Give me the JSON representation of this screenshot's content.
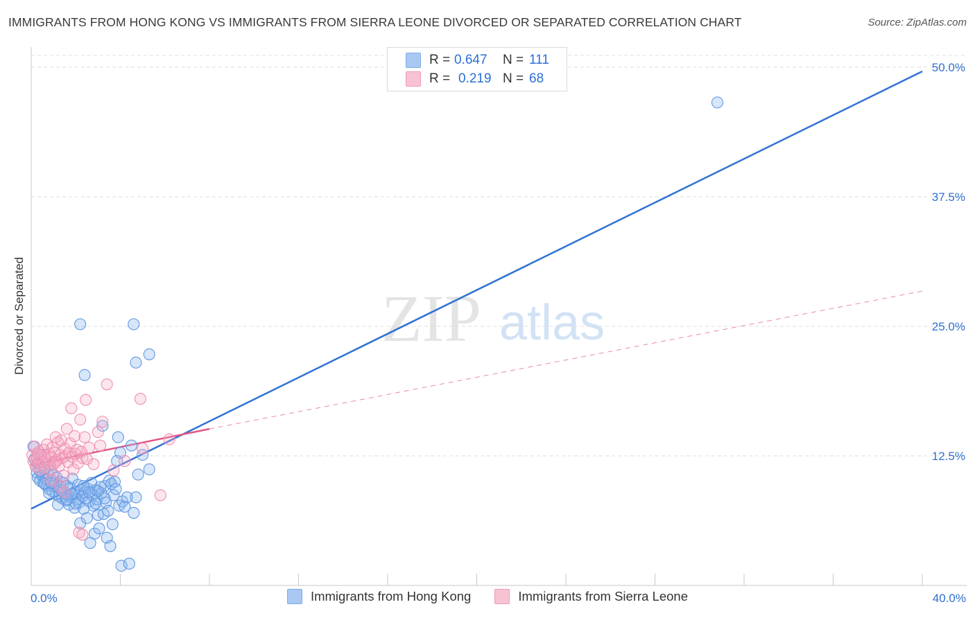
{
  "title": "IMMIGRANTS FROM HONG KONG VS IMMIGRANTS FROM SIERRA LEONE DIVORCED OR SEPARATED CORRELATION CHART",
  "source": "Source: ZipAtlas.com",
  "watermark": {
    "zip": "ZIP",
    "atlas": "atlas"
  },
  "legend": {
    "rows": [
      {
        "r_label": "R =",
        "r_value": "0.647",
        "n_label": "N =",
        "n_value": "111",
        "color": "#a9c8f2"
      },
      {
        "r_label": "R =",
        "r_value": "0.219",
        "n_label": "N =",
        "n_value": "68",
        "color": "#f7b6c9"
      }
    ]
  },
  "bottom_legend": [
    {
      "label": "Immigrants from Hong Kong",
      "color": "#a9c8f2"
    },
    {
      "label": "Immigrants from Sierra Leone",
      "color": "#f7b6c9"
    }
  ],
  "chart_data": {
    "type": "scatter",
    "title": "IMMIGRANTS FROM HONG KONG VS IMMIGRANTS FROM SIERRA LEONE DIVORCED OR SEPARATED CORRELATION CHART",
    "xlabel": "",
    "ylabel": "Divorced or Separated",
    "xlim": [
      0,
      40
    ],
    "ylim": [
      0,
      50
    ],
    "x_tick_labels": [
      "0.0%",
      "40.0%"
    ],
    "y_ticks": [
      12.5,
      25.0,
      37.5,
      50.0
    ],
    "y_tick_labels": [
      "12.5%",
      "25.0%",
      "37.5%",
      "50.0%"
    ],
    "grid": true,
    "legend_position": "top-center",
    "series": [
      {
        "name": "Immigrants from Hong Kong",
        "color": "#6ea0e8",
        "trendline": {
          "x": [
            0,
            40
          ],
          "y": [
            7.4,
            49.6
          ],
          "color": "#2e72d2",
          "style": "solid"
        },
        "points": [
          [
            0.1,
            13.4
          ],
          [
            0.15,
            12.2
          ],
          [
            0.2,
            11.5
          ],
          [
            0.25,
            10.9
          ],
          [
            0.3,
            10.4
          ],
          [
            0.35,
            11.8
          ],
          [
            0.4,
            10.1
          ],
          [
            0.45,
            12.6
          ],
          [
            0.5,
            10.6
          ],
          [
            0.55,
            9.9
          ],
          [
            0.6,
            11.2
          ],
          [
            0.65,
            10.3
          ],
          [
            0.7,
            9.6
          ],
          [
            0.75,
            10.8
          ],
          [
            0.8,
            9.3
          ],
          [
            0.85,
            11.6
          ],
          [
            0.9,
            10.2
          ],
          [
            0.95,
            9.1
          ],
          [
            1.0,
            10.7
          ],
          [
            1.05,
            9.8
          ],
          [
            1.1,
            8.8
          ],
          [
            1.15,
            10.4
          ],
          [
            1.2,
            9.5
          ],
          [
            1.25,
            8.6
          ],
          [
            1.3,
            10.0
          ],
          [
            1.35,
            9.2
          ],
          [
            1.4,
            8.4
          ],
          [
            1.45,
            9.9
          ],
          [
            1.5,
            8.9
          ],
          [
            1.55,
            8.2
          ],
          [
            1.6,
            9.6
          ],
          [
            1.65,
            8.7
          ],
          [
            1.7,
            7.8
          ],
          [
            1.75,
            9.4
          ],
          [
            1.8,
            8.5
          ],
          [
            1.85,
            10.3
          ],
          [
            1.9,
            8.8
          ],
          [
            1.95,
            7.5
          ],
          [
            2.0,
            9.1
          ],
          [
            2.05,
            8.3
          ],
          [
            2.1,
            9.7
          ],
          [
            2.15,
            8.0
          ],
          [
            2.2,
            6.0
          ],
          [
            2.25,
            9.2
          ],
          [
            2.3,
            8.6
          ],
          [
            2.35,
            7.4
          ],
          [
            2.4,
            9.0
          ],
          [
            2.45,
            8.4
          ],
          [
            2.5,
            6.5
          ],
          [
            2.55,
            9.3
          ],
          [
            2.6,
            8.1
          ],
          [
            2.65,
            4.1
          ],
          [
            2.7,
            9.9
          ],
          [
            2.75,
            8.7
          ],
          [
            2.8,
            7.7
          ],
          [
            2.85,
            5.0
          ],
          [
            2.9,
            9.2
          ],
          [
            2.95,
            8.3
          ],
          [
            3.0,
            6.8
          ],
          [
            3.05,
            5.5
          ],
          [
            3.1,
            9.5
          ],
          [
            3.15,
            8.9
          ],
          [
            3.2,
            15.4
          ],
          [
            3.25,
            6.9
          ],
          [
            3.3,
            9.6
          ],
          [
            3.35,
            8.0
          ],
          [
            3.4,
            4.6
          ],
          [
            3.45,
            7.2
          ],
          [
            3.5,
            10.1
          ],
          [
            3.55,
            3.8
          ],
          [
            3.6,
            9.8
          ],
          [
            3.65,
            5.9
          ],
          [
            3.7,
            8.7
          ],
          [
            3.75,
            10.0
          ],
          [
            3.8,
            9.3
          ],
          [
            3.85,
            12.0
          ],
          [
            3.9,
            14.3
          ],
          [
            3.95,
            7.7
          ],
          [
            4.0,
            12.8
          ],
          [
            4.05,
            1.9
          ],
          [
            4.1,
            8.1
          ],
          [
            4.2,
            7.6
          ],
          [
            4.3,
            8.5
          ],
          [
            4.4,
            2.1
          ],
          [
            4.5,
            13.5
          ],
          [
            4.6,
            7.0
          ],
          [
            4.7,
            8.5
          ],
          [
            4.8,
            10.7
          ],
          [
            5.0,
            12.6
          ],
          [
            5.3,
            11.2
          ],
          [
            2.2,
            25.2
          ],
          [
            2.4,
            20.3
          ],
          [
            4.6,
            25.2
          ],
          [
            4.7,
            21.5
          ],
          [
            5.3,
            22.3
          ],
          [
            3.0,
            9.1
          ],
          [
            2.0,
            7.9
          ],
          [
            1.5,
            9.0
          ],
          [
            1.0,
            9.6
          ],
          [
            0.6,
            9.8
          ],
          [
            0.8,
            8.9
          ],
          [
            1.2,
            7.8
          ],
          [
            1.8,
            8.8
          ],
          [
            2.6,
            9.0
          ],
          [
            3.3,
            8.4
          ],
          [
            0.4,
            11.0
          ],
          [
            0.9,
            9.9
          ],
          [
            1.6,
            8.3
          ],
          [
            2.9,
            7.9
          ],
          [
            30.8,
            46.6
          ],
          [
            2.35,
            9.6
          ]
        ]
      },
      {
        "name": "Immigrants from Sierra Leone",
        "color": "#f29bb8",
        "trendline": {
          "x": [
            0,
            8
          ],
          "y": [
            11.6,
            15.1
          ],
          "color": "#e05686",
          "style": "solid",
          "extended": {
            "x": [
              8,
              40
            ],
            "y": [
              15.1,
              28.4
            ],
            "style": "dashed"
          }
        },
        "points": [
          [
            0.05,
            12.6
          ],
          [
            0.1,
            12.0
          ],
          [
            0.15,
            13.4
          ],
          [
            0.2,
            11.5
          ],
          [
            0.25,
            12.3
          ],
          [
            0.3,
            11.8
          ],
          [
            0.35,
            12.9
          ],
          [
            0.4,
            11.2
          ],
          [
            0.45,
            12.5
          ],
          [
            0.5,
            11.9
          ],
          [
            0.55,
            13.1
          ],
          [
            0.6,
            11.4
          ],
          [
            0.65,
            12.2
          ],
          [
            0.7,
            13.6
          ],
          [
            0.75,
            11.8
          ],
          [
            0.8,
            12.7
          ],
          [
            0.85,
            11.1
          ],
          [
            0.9,
            12.4
          ],
          [
            0.95,
            13.3
          ],
          [
            1.0,
            11.7
          ],
          [
            1.05,
            12.8
          ],
          [
            1.1,
            14.3
          ],
          [
            1.15,
            12.1
          ],
          [
            1.2,
            13.8
          ],
          [
            1.25,
            11.5
          ],
          [
            1.3,
            12.6
          ],
          [
            1.35,
            14.0
          ],
          [
            1.4,
            12.3
          ],
          [
            1.45,
            10.6
          ],
          [
            1.5,
            13.2
          ],
          [
            1.55,
            12.5
          ],
          [
            1.6,
            15.1
          ],
          [
            1.65,
            11.9
          ],
          [
            1.7,
            12.8
          ],
          [
            1.75,
            13.7
          ],
          [
            1.8,
            17.1
          ],
          [
            1.85,
            12.4
          ],
          [
            1.9,
            11.2
          ],
          [
            1.95,
            14.4
          ],
          [
            2.0,
            12.7
          ],
          [
            2.05,
            13.1
          ],
          [
            2.1,
            11.8
          ],
          [
            2.15,
            5.1
          ],
          [
            2.2,
            16.0
          ],
          [
            2.25,
            12.9
          ],
          [
            2.3,
            12.3
          ],
          [
            2.4,
            14.3
          ],
          [
            2.45,
            17.9
          ],
          [
            2.5,
            12.2
          ],
          [
            2.6,
            13.3
          ],
          [
            2.8,
            11.7
          ],
          [
            3.0,
            14.8
          ],
          [
            3.1,
            13.5
          ],
          [
            3.2,
            15.8
          ],
          [
            3.4,
            19.4
          ],
          [
            3.7,
            11.1
          ],
          [
            4.2,
            12.0
          ],
          [
            4.9,
            18.0
          ],
          [
            5.0,
            13.2
          ],
          [
            5.8,
            8.7
          ],
          [
            6.2,
            14.1
          ],
          [
            0.3,
            12.7
          ],
          [
            0.6,
            12.4
          ],
          [
            1.1,
            11.9
          ],
          [
            1.5,
            9.0
          ],
          [
            2.3,
            4.9
          ],
          [
            0.9,
            10.2
          ],
          [
            1.3,
            9.5
          ]
        ]
      }
    ]
  }
}
